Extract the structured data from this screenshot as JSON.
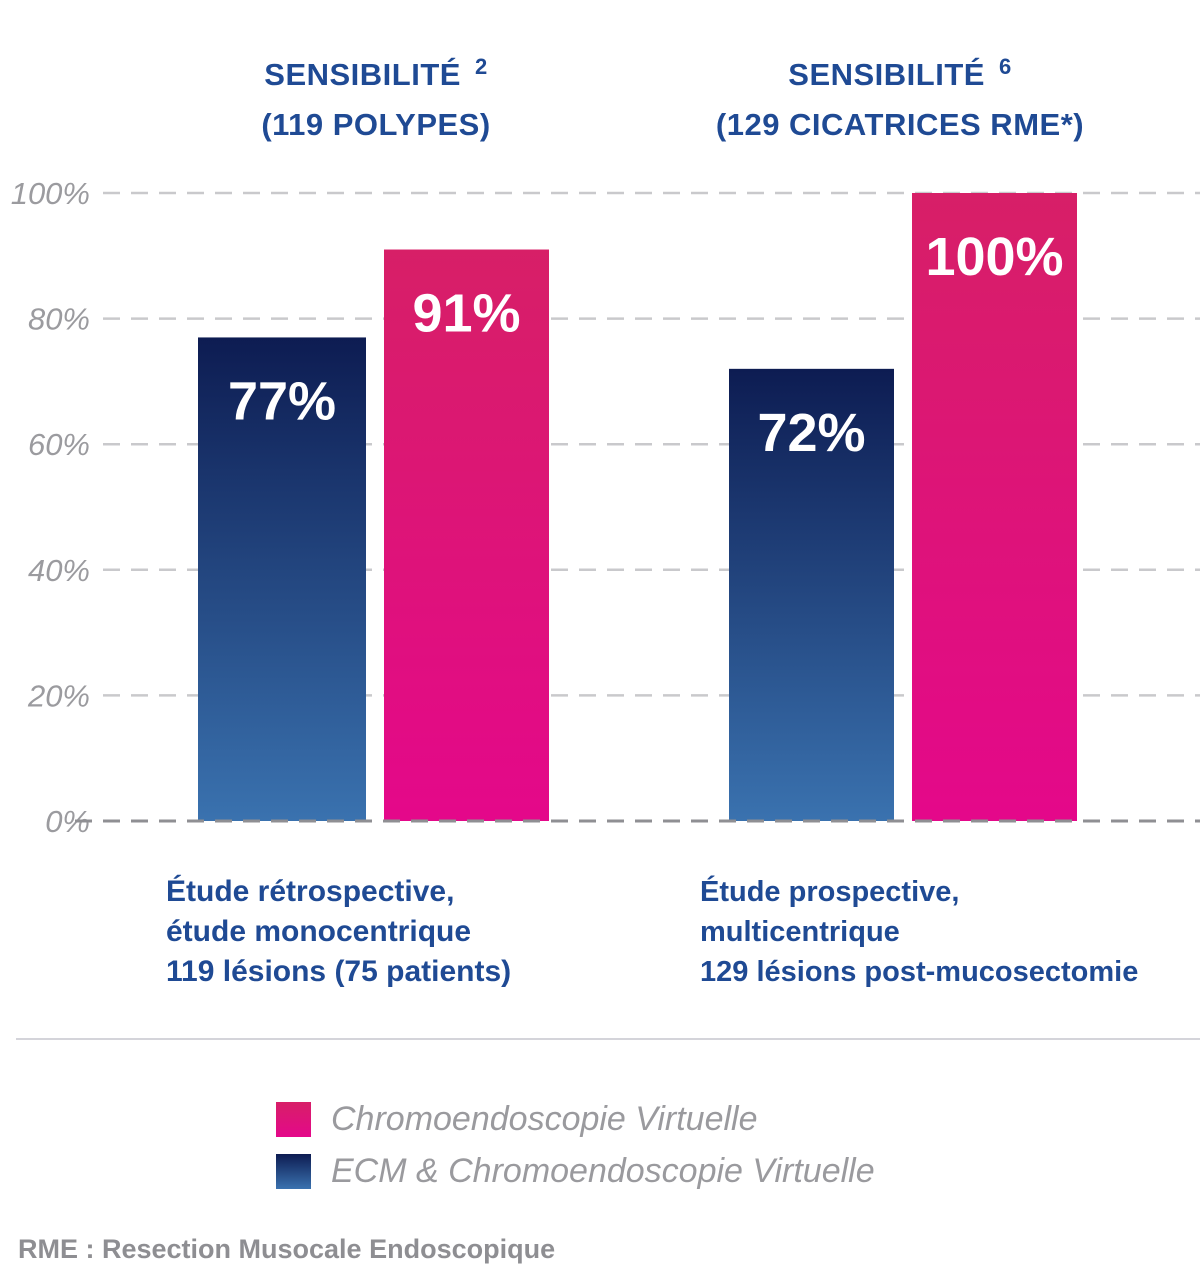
{
  "chart_data": {
    "type": "bar",
    "ylim": [
      0,
      100
    ],
    "yticks": [
      "0%",
      "20%",
      "40%",
      "60%",
      "80%",
      "100%"
    ],
    "grid": true,
    "legend_placement": "bottom",
    "groups": [
      {
        "title": "SENSIBILITÉ",
        "ref": "2",
        "subtitle": "(119 POLYPES)",
        "description": [
          "Étude rétrospective,",
          "étude monocentrique",
          "119 lésions (75 patients)"
        ]
      },
      {
        "title": "SENSIBILITÉ",
        "ref": "6",
        "subtitle": "(129 CICATRICES RME*)",
        "description": [
          "Étude prospective,",
          "multicentrique",
          "129 lésions post-mucosectomie"
        ]
      }
    ],
    "series": [
      {
        "name": "ECM & Chromoendoscopie Virtuelle",
        "values": [
          77,
          72
        ],
        "labels": [
          "77%",
          "72%"
        ],
        "color_top": "#0d1c52",
        "color_bottom": "#3a72af"
      },
      {
        "name": "Chromoendoscopie Virtuelle",
        "values": [
          91,
          100
        ],
        "labels": [
          "91%",
          "100%"
        ],
        "color_top": "#d71f67",
        "color_bottom": "#e4088a"
      }
    ]
  },
  "legend": [
    {
      "label": "Chromoendoscopie Virtuelle",
      "color_top": "#d71f67",
      "color_bottom": "#e4088a"
    },
    {
      "label": "ECM & Chromoendoscopie Virtuelle",
      "color_top": "#0d1c52",
      "color_bottom": "#3a72af"
    }
  ],
  "footnote": "RME : Resection Musocale Endoscopique"
}
